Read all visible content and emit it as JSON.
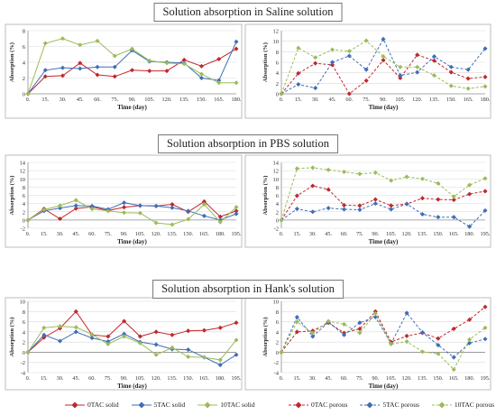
{
  "sections": [
    {
      "title": "Solution absorption in Saline solution"
    },
    {
      "title": "Solution absorption in PBS solution"
    },
    {
      "title": "Solution absorption in Hank's solution"
    }
  ],
  "legends": {
    "solid": [
      "0TAC solid",
      "5TAC solid",
      "10TAC solid"
    ],
    "porous": [
      "0TAC porous",
      "5TAC porous",
      "10TAC porous"
    ]
  },
  "colors": {
    "0TAC": "#c0282d",
    "5TAC": "#3f6eb6",
    "10TAC": "#9bbb59",
    "panel_border": "#bcbcbc",
    "grid": "#d9d9d9"
  },
  "chart_data": [
    {
      "type": "line",
      "title": "",
      "xlabel": "Time (day)",
      "ylabel": "Absorption (%)",
      "x": [
        "0.",
        "15.",
        "30.",
        "45.",
        "60.",
        "75.",
        "90.",
        "105.",
        "120.",
        "135.",
        "150.",
        "165.",
        "180."
      ],
      "yticks": [
        0,
        2,
        4,
        6,
        8
      ],
      "ylim": [
        0,
        8
      ],
      "line_style": "solid",
      "series": [
        {
          "name": "0TAC solid",
          "values": [
            0,
            2.2,
            2.3,
            3.9,
            2.4,
            2.2,
            3.0,
            2.9,
            2.9,
            4.3,
            3.5,
            4.4,
            5.7
          ]
        },
        {
          "name": "5TAC solid",
          "values": [
            0,
            3.0,
            3.3,
            3.2,
            3.4,
            3.4,
            5.5,
            4.1,
            4.0,
            3.9,
            2.0,
            1.7,
            6.6
          ]
        },
        {
          "name": "10TAC solid",
          "values": [
            0,
            6.4,
            7.0,
            6.2,
            6.7,
            4.8,
            5.7,
            4.2,
            3.9,
            3.8,
            2.5,
            1.4,
            1.4
          ]
        }
      ]
    },
    {
      "type": "line",
      "title": "",
      "xlabel": "Time (day)",
      "ylabel": "Absorption (%)",
      "x": [
        "0.",
        "15.",
        "30.",
        "45.",
        "60.",
        "75.",
        "90.",
        "105.",
        "120.",
        "135.",
        "150.",
        "165.",
        "180."
      ],
      "yticks": [
        0,
        2,
        4,
        6,
        8,
        10,
        12
      ],
      "ylim": [
        0,
        12
      ],
      "line_style": "dashed",
      "series": [
        {
          "name": "0TAC porous",
          "values": [
            0,
            3.9,
            5.8,
            5.5,
            0,
            2.5,
            6.4,
            3.0,
            7.4,
            6.3,
            4.1,
            2.9,
            3.2
          ]
        },
        {
          "name": "5TAC porous",
          "values": [
            0,
            1.8,
            1.1,
            6.0,
            7.2,
            4.6,
            10.4,
            3.5,
            4.1,
            7.1,
            5.1,
            4.6,
            8.6
          ]
        },
        {
          "name": "10TAC porous",
          "values": [
            0,
            8.7,
            6.9,
            8.4,
            8.1,
            10.1,
            7.1,
            5.1,
            5.1,
            3.5,
            1.5,
            1.0,
            1.4
          ]
        }
      ]
    },
    {
      "type": "line",
      "title": "",
      "xlabel": "Time (day)",
      "ylabel": "Absorption (%)",
      "x": [
        "0.",
        "15.",
        "30.",
        "45.",
        "60.",
        "75.",
        "90.",
        "105.",
        "120.",
        "135.",
        "150.",
        "165.",
        "180.",
        "195."
      ],
      "yticks": [
        -2,
        0,
        2,
        4,
        6,
        8,
        10,
        12,
        14
      ],
      "ylim": [
        -2,
        14
      ],
      "line_style": "solid",
      "series": [
        {
          "name": "0TAC solid",
          "values": [
            0,
            2.7,
            0.3,
            2.8,
            3.2,
            2.3,
            3.1,
            3.5,
            3.4,
            3.8,
            2.0,
            4.5,
            0.8,
            2.2
          ]
        },
        {
          "name": "5TAC solid",
          "values": [
            0,
            2.2,
            2.9,
            3.5,
            3.4,
            2.6,
            4.2,
            3.5,
            3.4,
            3.0,
            2.2,
            1.0,
            0.0,
            1.5
          ]
        },
        {
          "name": "10TAC solid",
          "values": [
            0,
            2.5,
            3.5,
            4.8,
            2.7,
            2.2,
            1.8,
            1.7,
            -0.7,
            -1.1,
            0.2,
            3.8,
            -0.5,
            3.1
          ]
        }
      ]
    },
    {
      "type": "line",
      "title": "",
      "xlabel": "Time (day)",
      "ylabel": "Absorption (%)",
      "x": [
        "0.",
        "15.",
        "30.",
        "45.",
        "60.",
        "75.",
        "90.",
        "105.",
        "120.",
        "135.",
        "150.",
        "165.",
        "180.",
        "195."
      ],
      "yticks": [
        -2,
        0,
        2,
        4,
        6,
        8,
        10,
        12,
        14
      ],
      "ylim": [
        -2,
        14
      ],
      "line_style": "dashed",
      "series": [
        {
          "name": "0TAC porous",
          "values": [
            0,
            5.9,
            8.3,
            7.4,
            3.6,
            3.5,
            5.0,
            3.5,
            3.9,
            5.3,
            5.0,
            4.9,
            6.3,
            7.0
          ]
        },
        {
          "name": "5TAC porous",
          "values": [
            0,
            2.7,
            2.0,
            2.9,
            2.6,
            2.5,
            4.0,
            2.6,
            3.9,
            1.4,
            0.7,
            0.7,
            -1.6,
            2.3
          ]
        },
        {
          "name": "10TAC porous",
          "values": [
            0,
            12.5,
            12.7,
            12.2,
            11.7,
            11.2,
            11.5,
            9.6,
            10.5,
            10.0,
            8.9,
            5.7,
            8.5,
            10.1
          ]
        }
      ]
    },
    {
      "type": "line",
      "title": "",
      "xlabel": "Time (day)",
      "ylabel": "Absorption (%)",
      "x": [
        "0.",
        "15.",
        "30.",
        "45.",
        "60.",
        "75.",
        "90.",
        "105.",
        "120.",
        "135.",
        "150.",
        "165.",
        "180.",
        "195."
      ],
      "yticks": [
        -4,
        -2,
        0,
        2,
        4,
        6,
        8,
        10
      ],
      "ylim": [
        -4,
        10
      ],
      "line_style": "solid",
      "series": [
        {
          "name": "0TAC solid",
          "values": [
            0,
            2.9,
            4.7,
            8.0,
            3.4,
            3.1,
            6.1,
            3.1,
            4.0,
            3.4,
            4.2,
            4.3,
            4.8,
            5.8
          ]
        },
        {
          "name": "5TAC solid",
          "values": [
            0,
            3.4,
            2.2,
            4.0,
            2.8,
            2.1,
            3.6,
            2.0,
            1.5,
            0.6,
            0.5,
            -1.0,
            -2.5,
            -0.5
          ]
        },
        {
          "name": "10TAC solid",
          "values": [
            0,
            4.8,
            5.1,
            4.9,
            3.5,
            1.6,
            3.1,
            1.8,
            -0.5,
            0.9,
            -0.9,
            -1.0,
            -1.5,
            2.4
          ]
        }
      ]
    },
    {
      "type": "line",
      "title": "",
      "xlabel": "Time (day)",
      "ylabel": "Absorption (%)",
      "x": [
        "0.",
        "15.",
        "30.",
        "45.",
        "60.",
        "75.",
        "90.",
        "105.",
        "120.",
        "135.",
        "150.",
        "165.",
        "180.",
        "195."
      ],
      "yticks": [
        -4,
        -2,
        0,
        2,
        4,
        6,
        8,
        10
      ],
      "ylim": [
        -4,
        10
      ],
      "line_style": "dashed",
      "series": [
        {
          "name": "0TAC porous",
          "values": [
            0,
            4.0,
            4.2,
            5.8,
            3.8,
            4.6,
            8.0,
            2.0,
            3.2,
            3.8,
            2.7,
            4.6,
            6.4,
            8.9
          ]
        },
        {
          "name": "5TAC porous",
          "values": [
            0,
            6.9,
            3.1,
            5.9,
            3.4,
            5.8,
            6.9,
            1.7,
            7.7,
            3.9,
            1.4,
            -1.0,
            1.8,
            2.6
          ]
        },
        {
          "name": "10TAC porous",
          "values": [
            0,
            6.0,
            3.8,
            6.1,
            5.5,
            3.8,
            7.6,
            1.6,
            2.1,
            0.1,
            -0.3,
            -3.4,
            2.5,
            4.8
          ]
        }
      ]
    }
  ]
}
